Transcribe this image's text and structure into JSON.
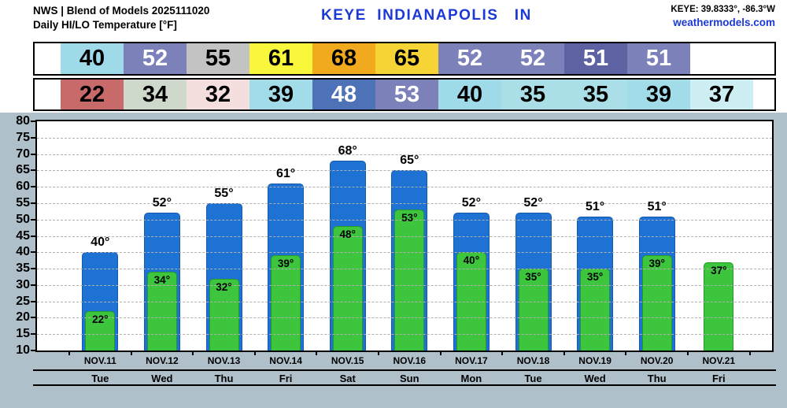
{
  "header": {
    "model_line": "NWS | Blend of Models 2025111020",
    "product_line": "Daily HI/LO Temperature [°F]",
    "station_title": "KEYE  INDIANAPOLIS   IN",
    "station_coords": "KEYE: 39.8333°, -86.3°W",
    "site_name": "weathermodels.com"
  },
  "colors": {
    "title_blue": "#1c38d6",
    "chart_bg": "#b0c0cb",
    "grid": "#b0b0b0",
    "hi_bar": "#1e72d4",
    "lo_bar": "#3ec53e"
  },
  "hi_strip": {
    "cells": [
      {
        "value": "40",
        "bg": "#9edae8",
        "fg": "#000000"
      },
      {
        "value": "52",
        "bg": "#7d81b9",
        "fg": "#ffffff"
      },
      {
        "value": "55",
        "bg": "#c3c3c3",
        "fg": "#000000"
      },
      {
        "value": "61",
        "bg": "#f9f73c",
        "fg": "#000000"
      },
      {
        "value": "68",
        "bg": "#f1a91e",
        "fg": "#000000"
      },
      {
        "value": "65",
        "bg": "#f6d436",
        "fg": "#000000"
      },
      {
        "value": "52",
        "bg": "#7d81b9",
        "fg": "#ffffff"
      },
      {
        "value": "52",
        "bg": "#7d81b9",
        "fg": "#ffffff"
      },
      {
        "value": "51",
        "bg": "#5e62a2",
        "fg": "#ffffff"
      },
      {
        "value": "51",
        "bg": "#7d81b9",
        "fg": "#ffffff"
      }
    ]
  },
  "lo_strip": {
    "cells": [
      {
        "value": "22",
        "bg": "#c96a6a",
        "fg": "#000000"
      },
      {
        "value": "34",
        "bg": "#cfd9cb",
        "fg": "#000000"
      },
      {
        "value": "32",
        "bg": "#f4dfde",
        "fg": "#000000"
      },
      {
        "value": "39",
        "bg": "#a3dce9",
        "fg": "#000000"
      },
      {
        "value": "48",
        "bg": "#4d72b7",
        "fg": "#ffffff"
      },
      {
        "value": "53",
        "bg": "#7d81b9",
        "fg": "#ffffff"
      },
      {
        "value": "40",
        "bg": "#9edae8",
        "fg": "#000000"
      },
      {
        "value": "35",
        "bg": "#aadfe7",
        "fg": "#000000"
      },
      {
        "value": "35",
        "bg": "#aadfe7",
        "fg": "#000000"
      },
      {
        "value": "39",
        "bg": "#a3dce9",
        "fg": "#000000"
      },
      {
        "value": "37",
        "bg": "#cdeff3",
        "fg": "#000000"
      }
    ]
  },
  "chart_data": {
    "type": "bar",
    "title": "Daily HI/LO Temperature [°F]",
    "categories": [
      "NOV.11",
      "NOV.12",
      "NOV.13",
      "NOV.14",
      "NOV.15",
      "NOV.16",
      "NOV.17",
      "NOV.18",
      "NOV.19",
      "NOV.20",
      "NOV.21"
    ],
    "weekdays": [
      "Tue",
      "Wed",
      "Thu",
      "Fri",
      "Sat",
      "Sun",
      "Mon",
      "Tue",
      "Wed",
      "Thu",
      "Fri"
    ],
    "series": [
      {
        "name": "HI",
        "color": "#1e72d4",
        "label_suffix": "°",
        "values": [
          40,
          52,
          55,
          61,
          68,
          65,
          52,
          52,
          51,
          51,
          null
        ]
      },
      {
        "name": "LO",
        "color": "#3ec53e",
        "label_suffix": "°",
        "values": [
          22,
          34,
          32,
          39,
          48,
          53,
          40,
          35,
          35,
          39,
          37
        ]
      }
    ],
    "ylim": [
      10,
      80
    ],
    "ytick_step": 5,
    "grid": "dashed horizontal",
    "legend": "none"
  }
}
